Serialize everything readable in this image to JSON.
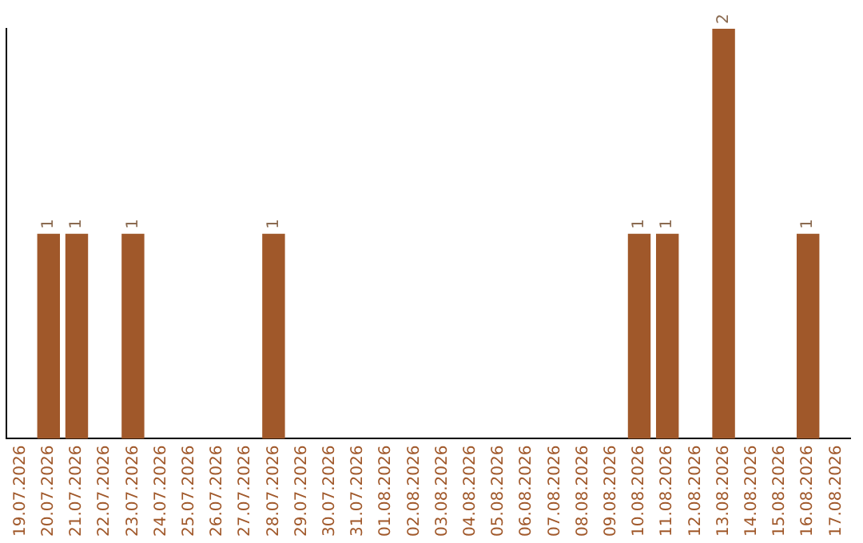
{
  "chart_data": {
    "type": "bar",
    "categories": [
      "19.07.2026",
      "20.07.2026",
      "21.07.2026",
      "22.07.2026",
      "23.07.2026",
      "24.07.2026",
      "25.07.2026",
      "26.07.2026",
      "27.07.2026",
      "28.07.2026",
      "29.07.2026",
      "30.07.2026",
      "31.07.2026",
      "01.08.2026",
      "02.08.2026",
      "03.08.2026",
      "04.08.2026",
      "05.08.2026",
      "06.08.2026",
      "07.08.2026",
      "08.08.2026",
      "09.08.2026",
      "10.08.2026",
      "11.08.2026",
      "12.08.2026",
      "13.08.2026",
      "14.08.2026",
      "15.08.2026",
      "16.08.2026",
      "17.08.2026"
    ],
    "values": [
      null,
      1,
      1,
      null,
      1,
      null,
      null,
      null,
      null,
      1,
      null,
      null,
      null,
      null,
      null,
      null,
      null,
      null,
      null,
      null,
      null,
      null,
      1,
      1,
      null,
      2,
      null,
      null,
      1,
      null
    ],
    "color": "#a0582a",
    "data_labels": true,
    "grid": false,
    "legend": false,
    "tick_labels": "x"
  }
}
